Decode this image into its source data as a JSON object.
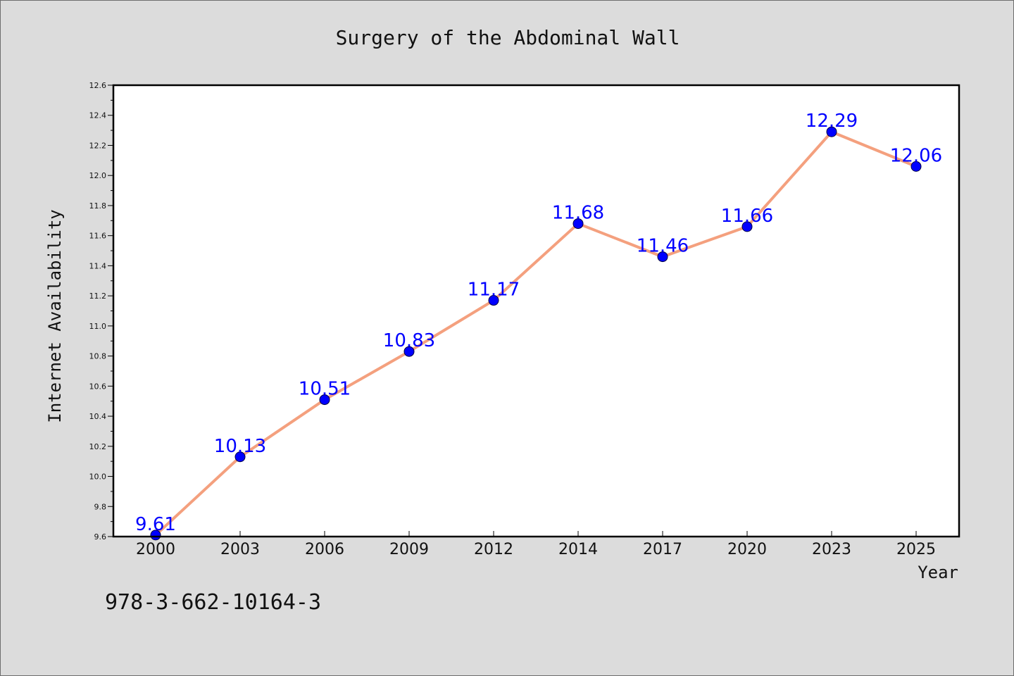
{
  "chart_data": {
    "type": "line",
    "title": "Surgery of the Abdominal Wall",
    "xlabel": "Year",
    "ylabel": "Internet Availability",
    "categories": [
      "2000",
      "2003",
      "2006",
      "2009",
      "2012",
      "2014",
      "2017",
      "2020",
      "2023",
      "2025"
    ],
    "values": [
      9.61,
      10.13,
      10.51,
      10.83,
      11.17,
      11.68,
      11.46,
      11.66,
      12.29,
      12.06
    ],
    "value_labels": [
      "9.61",
      "10.13",
      "10.51",
      "10.83",
      "11.17",
      "11.68",
      "11.46",
      "11.66",
      "12.29",
      "12.06"
    ],
    "ylim": [
      9.6,
      12.6
    ],
    "y_ticks": [
      "9.6",
      "9.8",
      "10.0",
      "10.2",
      "10.4",
      "10.6",
      "10.8",
      "11.0",
      "11.2",
      "11.4",
      "11.6",
      "11.8",
      "12.0",
      "12.2",
      "12.4",
      "12.6"
    ],
    "grid": false,
    "colors": {
      "line": "#f4a07e",
      "marker": "#0000ff",
      "data_label": "#0000ff",
      "plot_background": "#ffffff",
      "figure_background": "#dcdcdc"
    }
  },
  "footer": {
    "isbn": "978-3-662-10164-3"
  }
}
